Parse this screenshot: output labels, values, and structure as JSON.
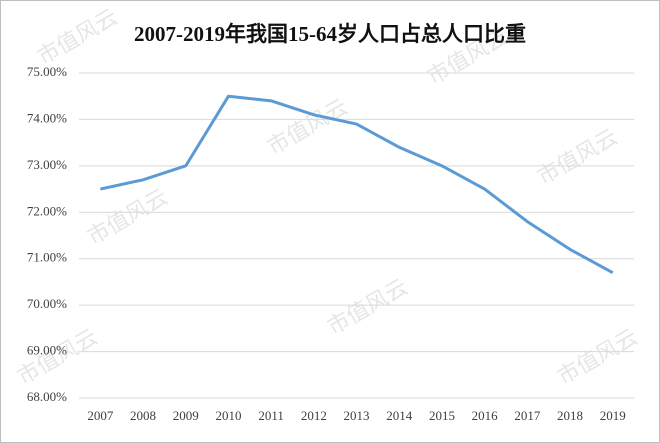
{
  "chart_data": {
    "type": "line",
    "title": "2007-2019年我国15-64岁人口占总人口比重",
    "watermark": "市值风云",
    "categories": [
      "2007",
      "2008",
      "2009",
      "2010",
      "2011",
      "2012",
      "2013",
      "2014",
      "2015",
      "2016",
      "2017",
      "2018",
      "2019"
    ],
    "values": [
      72.5,
      72.7,
      73.0,
      74.5,
      74.4,
      74.1,
      73.9,
      73.4,
      73.0,
      72.5,
      71.8,
      71.2,
      70.7
    ],
    "color": "#5b9bd5",
    "ylim": [
      68,
      75
    ],
    "yticks": [
      {
        "value": 68,
        "label": "68.00%"
      },
      {
        "value": 69,
        "label": "69.00%"
      },
      {
        "value": 70,
        "label": "70.00%"
      },
      {
        "value": 71,
        "label": "71.00%"
      },
      {
        "value": 72,
        "label": "72.00%"
      },
      {
        "value": 73,
        "label": "73.00%"
      },
      {
        "value": 74,
        "label": "74.00%"
      },
      {
        "value": 75,
        "label": "75.00%"
      }
    ],
    "grid": true
  }
}
